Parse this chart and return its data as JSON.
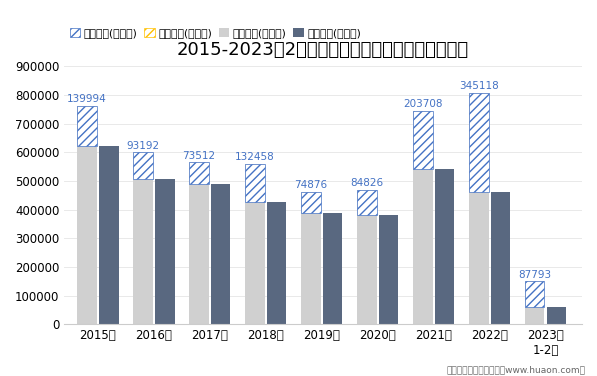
{
  "title": "2015-2023年2月河北省外商投资企业进出口差额图",
  "categories": [
    "2015年",
    "2016年",
    "2017年",
    "2018年",
    "2019年",
    "2020年",
    "2021年",
    "2022年",
    "2023年\n1-2月"
  ],
  "exports": [
    762000,
    600000,
    565000,
    560000,
    462000,
    468000,
    745000,
    808000,
    150000
  ],
  "imports": [
    622000,
    507000,
    491000,
    427000,
    387000,
    383000,
    541000,
    463000,
    62000
  ],
  "surplus": [
    139994,
    93192,
    73512,
    132458,
    74876,
    84826,
    203708,
    345118,
    87793
  ],
  "surplus_labels": [
    "139994",
    "93192",
    "73512",
    "132458",
    "74876",
    "84826",
    "203708",
    "345118",
    "87793"
  ],
  "label_color": "#4472C4",
  "export_color": "#D0D0D0",
  "import_color": "#596880",
  "surplus_edge_color": "#4472C4",
  "deficit_edge_color": "#FFC000",
  "ylim_max": 900000,
  "yticks": [
    0,
    100000,
    200000,
    300000,
    400000,
    500000,
    600000,
    700000,
    800000,
    900000
  ],
  "legend_labels": [
    "贸易顺差(万美元)",
    "贸易逆差(万美元)",
    "出口总额(万美元)",
    "进口总额(万美元)"
  ],
  "footer": "制图：华经产业研究院（www.huaon.com）",
  "background_color": "#FFFFFF",
  "title_fontsize": 13,
  "tick_fontsize": 8.5,
  "anno_fontsize": 7.5
}
